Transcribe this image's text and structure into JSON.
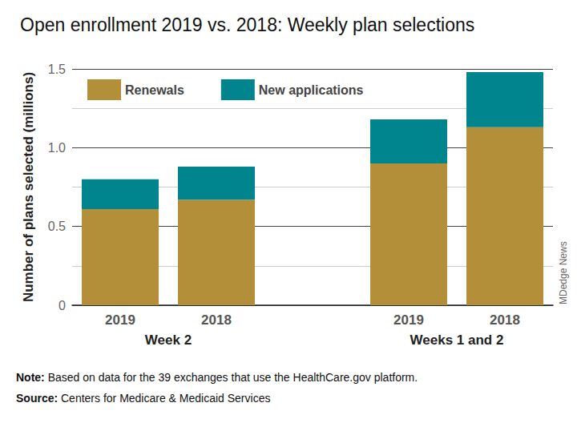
{
  "chart_data": {
    "type": "bar",
    "title": "Open enrollment 2019 vs. 2018: Weekly plan selections",
    "y_label": "Number of plans selected (millions)",
    "groups": [
      {
        "name": "Week 2",
        "categories": [
          "2019",
          "2018"
        ]
      },
      {
        "name": "Weeks 1 and 2",
        "categories": [
          "2019",
          "2018"
        ]
      }
    ],
    "series": [
      {
        "name": "Renewals",
        "color": "#b38f3a",
        "values": [
          [
            0.61,
            0.67
          ],
          [
            0.9,
            1.13
          ]
        ]
      },
      {
        "name": "New applications",
        "color": "#00858f",
        "values": [
          [
            0.19,
            0.21
          ],
          [
            0.28,
            0.35
          ]
        ]
      }
    ],
    "ylim": [
      0,
      1.5
    ],
    "yticks": [
      0,
      0.5,
      {
        "value": 1,
        "label": "1.0"
      },
      1.5
    ],
    "stacked": true,
    "grid": true,
    "legend": "top-left",
    "note": "Note: Based on data for the 39 exchanges that use the HealthCare.gov platform.",
    "source": "Source: Centers for Medicare & Medicaid Services",
    "credit": "MDedge News"
  }
}
